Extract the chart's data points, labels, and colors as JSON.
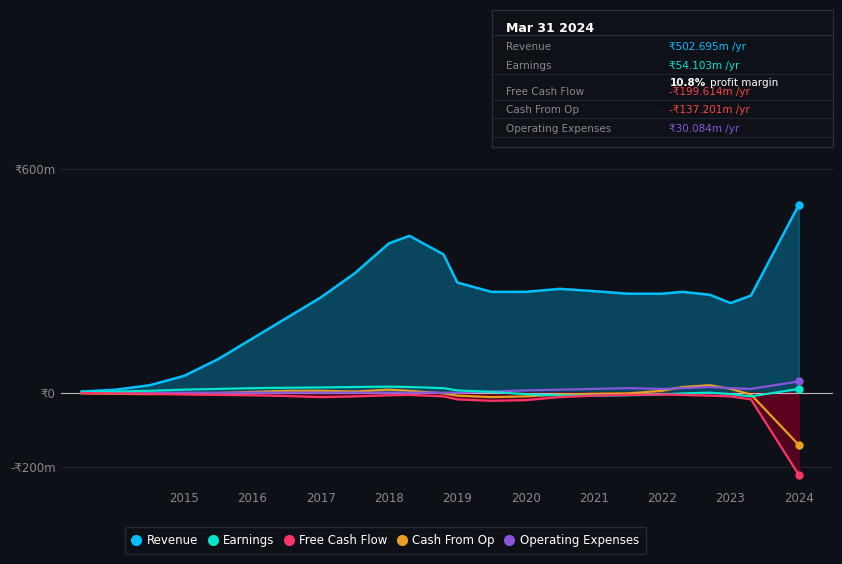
{
  "background_color": "#0d1117",
  "plot_bg_color": "#0d1117",
  "grid_color": "#2a2f3a",
  "title": "Mar 31 2024",
  "years": [
    2013.5,
    2014,
    2014.5,
    2015,
    2015.5,
    2016,
    2016.5,
    2017,
    2017.5,
    2018,
    2018.3,
    2018.8,
    2019,
    2019.5,
    2020,
    2020.5,
    2021,
    2021.5,
    2022,
    2022.3,
    2022.7,
    2023,
    2023.3,
    2024
  ],
  "revenue": [
    3,
    8,
    20,
    45,
    90,
    145,
    200,
    255,
    320,
    400,
    420,
    370,
    295,
    270,
    270,
    278,
    272,
    265,
    265,
    270,
    262,
    240,
    260,
    503
  ],
  "earnings": [
    2,
    3,
    5,
    8,
    10,
    12,
    13,
    14,
    15,
    16,
    15,
    12,
    6,
    2,
    -4,
    -8,
    -8,
    -7,
    -5,
    -2,
    0,
    -4,
    -10,
    10
  ],
  "free_cash_flow": [
    -1,
    -2,
    -3,
    -5,
    -6,
    -7,
    -9,
    -12,
    -10,
    -7,
    -6,
    -10,
    -18,
    -22,
    -20,
    -12,
    -8,
    -6,
    -5,
    -6,
    -8,
    -10,
    -18,
    -220
  ],
  "cash_from_op": [
    -2,
    -3,
    -4,
    -3,
    -1,
    2,
    5,
    5,
    3,
    8,
    5,
    -2,
    -8,
    -12,
    -10,
    -5,
    -3,
    -2,
    5,
    15,
    20,
    10,
    -5,
    -140
  ],
  "operating_expenses": [
    0,
    0,
    0,
    0,
    0,
    0,
    0,
    0,
    0,
    0,
    0,
    0,
    0,
    3,
    6,
    8,
    10,
    12,
    10,
    12,
    15,
    12,
    10,
    30
  ],
  "revenue_color": "#00bfff",
  "earnings_color": "#00e5cc",
  "fcf_color": "#ff3366",
  "cashop_color": "#e8a020",
  "opex_color": "#8855dd",
  "revenue_fill_alpha": 0.3,
  "fcf_fill_alpha": 0.5,
  "cashop_fill_alpha": 0.5,
  "ylim_min": -250,
  "ylim_max": 650,
  "yticks": [
    -200,
    0,
    600
  ],
  "ytick_labels": [
    "-₹200m",
    "₹0",
    "₹600m"
  ],
  "xtick_years": [
    2015,
    2016,
    2017,
    2018,
    2019,
    2020,
    2021,
    2022,
    2023,
    2024
  ],
  "tooltip_box_color": "#0e1218",
  "tooltip_border_color": "#2a3040",
  "legend_labels": [
    "Revenue",
    "Earnings",
    "Free Cash Flow",
    "Cash From Op",
    "Operating Expenses"
  ],
  "legend_colors": [
    "#00bfff",
    "#00e5cc",
    "#ff3366",
    "#e8a020",
    "#8855dd"
  ]
}
